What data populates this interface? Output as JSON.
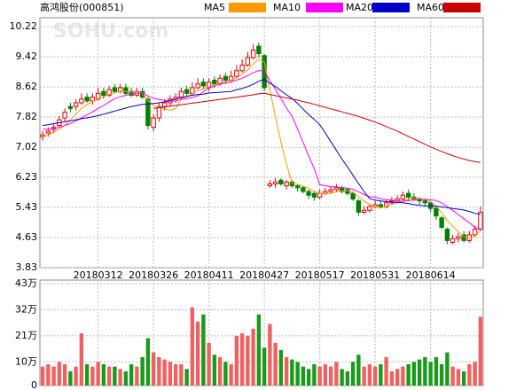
{
  "chart_data": [
    {
      "type": "candlestick",
      "title": "高鸿股份(000851)",
      "watermark": "SOHU.com",
      "categories": [
        null,
        null,
        null,
        null,
        null,
        null,
        null,
        null,
        null,
        null,
        "20180312",
        null,
        null,
        null,
        null,
        null,
        null,
        null,
        null,
        null,
        "20180326",
        null,
        null,
        null,
        null,
        null,
        null,
        null,
        null,
        null,
        "20180411",
        null,
        null,
        null,
        null,
        null,
        null,
        null,
        null,
        null,
        "20180427",
        null,
        null,
        null,
        null,
        null,
        null,
        null,
        null,
        null,
        "20180517",
        null,
        null,
        null,
        null,
        null,
        null,
        null,
        null,
        null,
        "20180531",
        null,
        null,
        null,
        null,
        null,
        null,
        null,
        null,
        null,
        "20180614",
        null,
        null,
        null,
        null,
        null,
        null,
        null,
        null,
        null
      ],
      "open": [
        7.3,
        7.4,
        7.5,
        7.6,
        7.8,
        8.1,
        8.1,
        8.2,
        8.35,
        8.25,
        8.3,
        8.5,
        8.4,
        8.6,
        8.5,
        8.6,
        8.5,
        8.4,
        8.5,
        8.3,
        7.55,
        7.8,
        8.1,
        8.2,
        8.3,
        8.35,
        8.55,
        8.45,
        8.6,
        8.75,
        8.6,
        8.8,
        8.7,
        8.9,
        8.8,
        8.9,
        9.05,
        9.2,
        9.4,
        9.7,
        9.45,
        6.0,
        6.05,
        6.15,
        6.0,
        6.1,
        6.0,
        5.95,
        5.85,
        5.8,
        5.7,
        5.8,
        5.85,
        5.9,
        5.95,
        5.9,
        5.8,
        5.6,
        5.3,
        5.35,
        5.45,
        5.5,
        5.45,
        5.55,
        5.6,
        5.65,
        5.8,
        5.7,
        5.65,
        5.6,
        5.55,
        5.4,
        5.15,
        4.85,
        4.5,
        4.6,
        4.7,
        4.55,
        4.7,
        4.85
      ],
      "high": [
        7.45,
        7.55,
        7.65,
        7.85,
        8.05,
        8.2,
        8.3,
        8.45,
        8.45,
        8.45,
        8.6,
        8.6,
        8.65,
        8.7,
        8.7,
        8.7,
        8.6,
        8.6,
        8.6,
        8.35,
        7.9,
        8.2,
        8.3,
        8.4,
        8.45,
        8.6,
        8.65,
        8.75,
        8.85,
        8.85,
        8.85,
        8.9,
        8.95,
        9.0,
        9.05,
        9.2,
        9.35,
        9.55,
        9.75,
        9.8,
        9.5,
        6.15,
        6.2,
        6.2,
        6.15,
        6.15,
        6.05,
        6.0,
        5.9,
        5.85,
        5.9,
        5.95,
        6.0,
        6.05,
        6.0,
        5.95,
        5.85,
        5.65,
        5.45,
        5.5,
        5.6,
        5.6,
        5.65,
        5.7,
        5.75,
        5.85,
        5.9,
        5.8,
        5.7,
        5.65,
        5.6,
        5.45,
        5.2,
        4.9,
        4.7,
        4.75,
        4.8,
        4.8,
        4.95,
        5.45
      ],
      "low": [
        7.2,
        7.3,
        7.4,
        7.55,
        7.7,
        7.95,
        8.0,
        8.15,
        8.2,
        8.15,
        8.25,
        8.3,
        8.35,
        8.45,
        8.45,
        8.4,
        8.35,
        8.35,
        8.3,
        7.5,
        7.45,
        7.7,
        8.0,
        8.1,
        8.2,
        8.3,
        8.35,
        8.4,
        8.55,
        8.55,
        8.5,
        8.6,
        8.65,
        8.7,
        8.75,
        8.85,
        9.0,
        9.15,
        9.35,
        9.4,
        8.5,
        5.95,
        5.95,
        6.0,
        5.9,
        5.95,
        5.85,
        5.8,
        5.65,
        5.6,
        5.65,
        5.75,
        5.8,
        5.85,
        5.8,
        5.75,
        5.6,
        5.2,
        5.25,
        5.3,
        5.4,
        5.4,
        5.4,
        5.5,
        5.55,
        5.6,
        5.6,
        5.6,
        5.5,
        5.45,
        5.3,
        5.1,
        4.85,
        4.45,
        4.45,
        4.5,
        4.5,
        4.5,
        4.65,
        4.8
      ],
      "close": [
        7.35,
        7.45,
        7.55,
        7.75,
        7.95,
        8.05,
        8.2,
        8.3,
        8.25,
        8.35,
        8.45,
        8.4,
        8.55,
        8.5,
        8.6,
        8.45,
        8.4,
        8.5,
        8.35,
        7.6,
        7.8,
        8.1,
        8.2,
        8.3,
        8.35,
        8.5,
        8.45,
        8.6,
        8.7,
        8.65,
        8.75,
        8.7,
        8.85,
        8.8,
        8.9,
        9.05,
        9.2,
        9.4,
        9.6,
        9.5,
        8.6,
        6.05,
        6.1,
        6.05,
        6.1,
        6.0,
        5.95,
        5.85,
        5.75,
        5.7,
        5.8,
        5.85,
        5.9,
        5.95,
        5.85,
        5.8,
        5.65,
        5.3,
        5.35,
        5.45,
        5.5,
        5.45,
        5.55,
        5.6,
        5.65,
        5.75,
        5.7,
        5.65,
        5.6,
        5.55,
        5.4,
        5.2,
        4.9,
        4.55,
        4.6,
        4.65,
        4.55,
        4.7,
        4.85,
        5.3
      ],
      "up_color": "#e60000",
      "down_color": "#008000",
      "series": [
        {
          "name": "MA5",
          "color": "#ff9900",
          "values": [
            7.3,
            7.35,
            7.42,
            7.5,
            7.61,
            7.75,
            7.9,
            8.05,
            8.15,
            8.23,
            8.31,
            8.36,
            8.42,
            8.47,
            8.5,
            8.5,
            8.48,
            8.49,
            8.46,
            8.26,
            8.13,
            8.07,
            8.04,
            8.0,
            8.05,
            8.29,
            8.36,
            8.44,
            8.52,
            8.58,
            8.63,
            8.68,
            8.73,
            8.75,
            8.8,
            8.86,
            8.96,
            9.07,
            9.23,
            9.35,
            9.28,
            8.55,
            7.84,
            7.16,
            6.58,
            6.06,
            6.04,
            5.99,
            5.93,
            5.85,
            5.81,
            5.79,
            5.8,
            5.84,
            5.87,
            5.87,
            5.83,
            5.71,
            5.59,
            5.51,
            5.45,
            5.41,
            5.46,
            5.51,
            5.55,
            5.6,
            5.65,
            5.67,
            5.67,
            5.65,
            5.58,
            5.46,
            5.29,
            5.08,
            4.93,
            4.78,
            4.65,
            4.61,
            4.66,
            4.81
          ]
        },
        {
          "name": "MA10",
          "color": "#ff00ff",
          "values": [
            7.5,
            7.5,
            7.52,
            7.55,
            7.6,
            7.65,
            7.72,
            7.8,
            7.88,
            7.96,
            8.05,
            8.13,
            8.22,
            8.31,
            8.36,
            8.4,
            8.43,
            8.45,
            8.46,
            8.38,
            8.32,
            8.29,
            8.26,
            8.24,
            8.25,
            8.29,
            8.31,
            8.34,
            8.38,
            8.49,
            8.6,
            8.64,
            8.7,
            8.73,
            8.75,
            8.8,
            8.85,
            8.92,
            9.0,
            9.05,
            9.04,
            8.79,
            8.56,
            8.31,
            8.06,
            7.84,
            7.51,
            7.15,
            6.79,
            6.46,
            6.03,
            6.0,
            5.98,
            5.97,
            5.95,
            5.94,
            5.91,
            5.84,
            5.77,
            5.71,
            5.7,
            5.66,
            5.63,
            5.62,
            5.6,
            5.59,
            5.61,
            5.62,
            5.63,
            5.64,
            5.63,
            5.61,
            5.55,
            5.45,
            5.35,
            5.24,
            5.13,
            5.02,
            4.9,
            4.86
          ]
        },
        {
          "name": "MA20",
          "color": "#0000cc",
          "values": [
            7.6,
            7.62,
            7.65,
            7.67,
            7.7,
            7.72,
            7.75,
            7.78,
            7.8,
            7.83,
            7.86,
            7.9,
            7.94,
            7.98,
            8.02,
            8.06,
            8.1,
            8.13,
            8.16,
            8.17,
            8.18,
            8.2,
            8.22,
            8.26,
            8.3,
            8.34,
            8.37,
            8.4,
            8.42,
            8.43,
            8.46,
            8.47,
            8.48,
            8.49,
            8.5,
            8.55,
            8.58,
            8.63,
            8.69,
            8.77,
            8.82,
            8.72,
            8.63,
            8.52,
            8.41,
            8.32,
            8.18,
            8.03,
            7.89,
            7.76,
            7.62,
            7.4,
            7.17,
            6.94,
            6.71,
            6.5,
            6.28,
            6.06,
            5.85,
            5.66,
            5.62,
            5.6,
            5.58,
            5.57,
            5.56,
            5.55,
            5.53,
            5.5,
            5.48,
            5.47,
            5.47,
            5.46,
            5.44,
            5.42,
            5.4,
            5.38,
            5.36,
            5.32,
            5.27,
            5.24
          ]
        },
        {
          "name": "MA60",
          "color": "#cc0000",
          "values": [
            null,
            null,
            null,
            null,
            null,
            null,
            null,
            null,
            null,
            null,
            null,
            null,
            null,
            null,
            null,
            null,
            null,
            null,
            null,
            null,
            8.05,
            8.07,
            8.09,
            8.11,
            8.13,
            8.15,
            8.17,
            8.19,
            8.21,
            8.23,
            8.25,
            8.27,
            8.29,
            8.31,
            8.33,
            8.35,
            8.37,
            8.39,
            8.41,
            8.44,
            8.45,
            8.42,
            8.39,
            8.36,
            8.33,
            8.3,
            8.27,
            8.23,
            8.2,
            8.16,
            8.12,
            8.08,
            8.04,
            8.0,
            7.96,
            7.92,
            7.88,
            7.84,
            7.79,
            7.74,
            7.69,
            7.63,
            7.57,
            7.51,
            7.45,
            7.38,
            7.31,
            7.24,
            7.17,
            7.1,
            7.03,
            6.97,
            6.91,
            6.85,
            6.8,
            6.75,
            6.71,
            6.67,
            6.64,
            6.62
          ]
        }
      ],
      "ylim": [
        3.83,
        10.22
      ],
      "yticks": [
        3.83,
        4.63,
        5.43,
        6.23,
        7.02,
        7.82,
        8.62,
        9.42,
        10.22
      ],
      "grid": true
    },
    {
      "type": "volume",
      "values": [
        8,
        9,
        8,
        10,
        9,
        6,
        8,
        22,
        9,
        8,
        10,
        9,
        8,
        8,
        7,
        6,
        9,
        8,
        12,
        20,
        14,
        12,
        11,
        10,
        9,
        9,
        7,
        33,
        27,
        30,
        18,
        13,
        12,
        10,
        9,
        21,
        22,
        21,
        24,
        30,
        16,
        26,
        18,
        15,
        12,
        11,
        10,
        8,
        7,
        9,
        8,
        9,
        8,
        10,
        7,
        6,
        10,
        13,
        8,
        9,
        8,
        9,
        12,
        6,
        7,
        8,
        9,
        10,
        11,
        12,
        10,
        12,
        9,
        14,
        8,
        7,
        6,
        9,
        10,
        29
      ],
      "ylim": [
        0,
        43
      ],
      "yticks": [
        {
          "value": 43,
          "label": "43万"
        },
        {
          "value": 32,
          "label": "32万"
        },
        {
          "value": 21,
          "label": "21万"
        },
        {
          "value": 10,
          "label": "10万"
        },
        0
      ],
      "grid": true
    }
  ]
}
